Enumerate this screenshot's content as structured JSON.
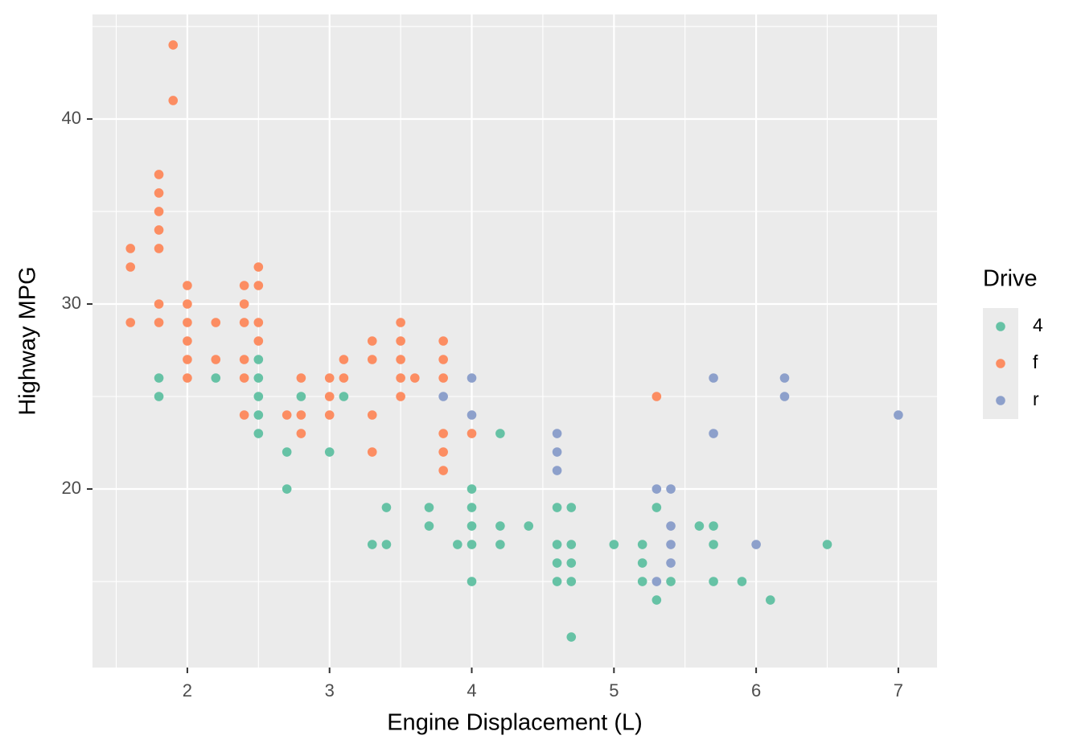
{
  "chart_data": {
    "type": "scatter",
    "x_label": "Engine Displacement (L)",
    "y_label": "Highway MPG",
    "legend_title": "Drive",
    "xlim": [
      1.333,
      7.272
    ],
    "ylim": [
      10.35,
      45.65
    ],
    "xticks": [
      2,
      3,
      4,
      5,
      6,
      7
    ],
    "yticks": [
      20,
      30,
      40
    ],
    "x_minor_ticks": [
      1.5,
      2.5,
      3.5,
      4.5,
      5.5,
      6.5
    ],
    "y_minor_ticks": [
      15,
      25,
      35,
      45
    ],
    "grid": true,
    "legend": "right",
    "series": [
      {
        "name": "4",
        "color": "#66c2a5",
        "x": [
          1.8,
          1.8,
          2.2,
          2.5,
          2.5,
          2.5,
          2.5,
          2.5,
          2.7,
          2.7,
          2.8,
          3.0,
          3.1,
          3.3,
          3.4,
          3.4,
          3.7,
          3.7,
          3.9,
          4.0,
          4.0,
          4.0,
          4.0,
          4.0,
          4.2,
          4.2,
          4.2,
          4.4,
          4.6,
          4.6,
          4.6,
          4.6,
          4.7,
          4.7,
          4.7,
          4.7,
          4.7,
          5.0,
          5.2,
          5.2,
          5.2,
          5.3,
          5.3,
          5.4,
          5.6,
          5.7,
          5.7,
          5.7,
          5.9,
          6.1,
          6.5
        ],
        "values": [
          26,
          25,
          26,
          27,
          26,
          25,
          24,
          23,
          22,
          20,
          25,
          22,
          25,
          17,
          19,
          17,
          19,
          18,
          17,
          20,
          19,
          18,
          17,
          15,
          23,
          18,
          17,
          18,
          19,
          17,
          16,
          15,
          19,
          17,
          16,
          15,
          12,
          17,
          17,
          16,
          15,
          19,
          14,
          15,
          18,
          18,
          17,
          15,
          15,
          14,
          17
        ]
      },
      {
        "name": "f",
        "color": "#fc8d62",
        "x": [
          1.6,
          1.6,
          1.6,
          1.8,
          1.8,
          1.8,
          1.8,
          1.8,
          1.8,
          1.8,
          1.9,
          1.9,
          2.0,
          2.0,
          2.0,
          2.0,
          2.0,
          2.0,
          2.2,
          2.2,
          2.4,
          2.4,
          2.4,
          2.4,
          2.4,
          2.4,
          2.5,
          2.5,
          2.5,
          2.5,
          2.7,
          2.8,
          2.8,
          2.8,
          3.0,
          3.0,
          3.0,
          3.1,
          3.1,
          3.3,
          3.3,
          3.3,
          3.3,
          3.5,
          3.5,
          3.5,
          3.5,
          3.5,
          3.6,
          3.8,
          3.8,
          3.8,
          3.8,
          3.8,
          3.8,
          4.0,
          5.3
        ],
        "values": [
          33,
          32,
          29,
          37,
          36,
          35,
          34,
          33,
          30,
          29,
          44,
          41,
          31,
          30,
          29,
          28,
          27,
          26,
          29,
          27,
          31,
          30,
          29,
          27,
          26,
          24,
          32,
          31,
          29,
          28,
          24,
          26,
          24,
          23,
          26,
          25,
          24,
          27,
          26,
          28,
          27,
          24,
          22,
          29,
          28,
          27,
          26,
          25,
          26,
          28,
          27,
          26,
          23,
          22,
          21,
          23,
          25
        ]
      },
      {
        "name": "r",
        "color": "#8da0cb",
        "x": [
          3.8,
          4.0,
          4.0,
          4.6,
          4.6,
          4.6,
          5.3,
          5.3,
          5.4,
          5.4,
          5.4,
          5.4,
          5.7,
          5.7,
          6.0,
          6.2,
          6.2,
          7.0
        ],
        "values": [
          25,
          26,
          24,
          23,
          22,
          21,
          20,
          15,
          20,
          18,
          17,
          16,
          26,
          23,
          17,
          26,
          25,
          24
        ]
      }
    ]
  }
}
